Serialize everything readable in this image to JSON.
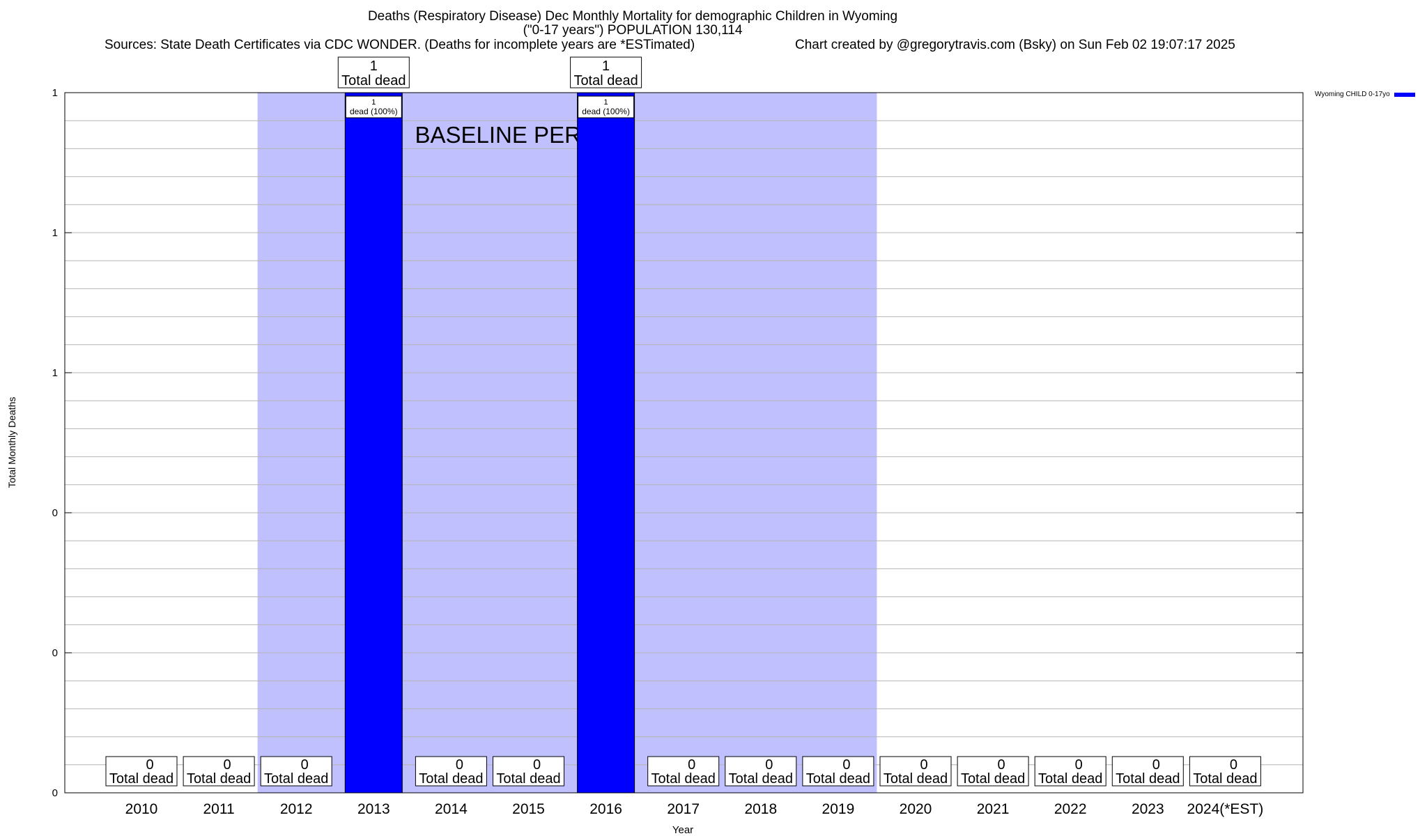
{
  "title": {
    "line1": "Deaths (Respiratory Disease) Dec Monthly Mortality for demographic Children in Wyoming",
    "line2": "(\"0-17 years\") POPULATION 130,114",
    "sources": "Sources: State Death Certificates via CDC WONDER. (Deaths for incomplete years are *ESTimated)",
    "credit": "Chart created by @gregorytravis.com (Bsky) on Sun Feb 02 19:07:17 2025"
  },
  "chart_data": {
    "type": "bar",
    "title": "Deaths (Respiratory Disease) Dec Monthly Mortality for demographic Children in Wyoming",
    "xlabel": "Year",
    "ylabel": "Total Monthly Deaths",
    "categories": [
      "2010",
      "2011",
      "2012",
      "2013",
      "2014",
      "2015",
      "2016",
      "2017",
      "2018",
      "2019",
      "2020",
      "2021",
      "2022",
      "2023",
      "2024(*EST)"
    ],
    "series": [
      {
        "name": "Wyoming CHILD 0-17yo",
        "color": "#0000ff",
        "values": [
          0,
          0,
          0,
          1,
          0,
          0,
          1,
          0,
          0,
          0,
          0,
          0,
          0,
          0,
          0
        ]
      }
    ],
    "ylim": [
      0,
      1
    ],
    "y_tick_labels": [
      "0",
      "0",
      "0",
      "1",
      "1",
      "1"
    ],
    "total_label_suffix": "Total dead",
    "bar_inner_label": "dead (100%)",
    "baseline_period": {
      "label": "BASELINE PERIOD",
      "start_category": "2012",
      "end_category": "2019",
      "color": "#c0c0ff"
    },
    "grid": true,
    "legend_position": "top-right"
  }
}
